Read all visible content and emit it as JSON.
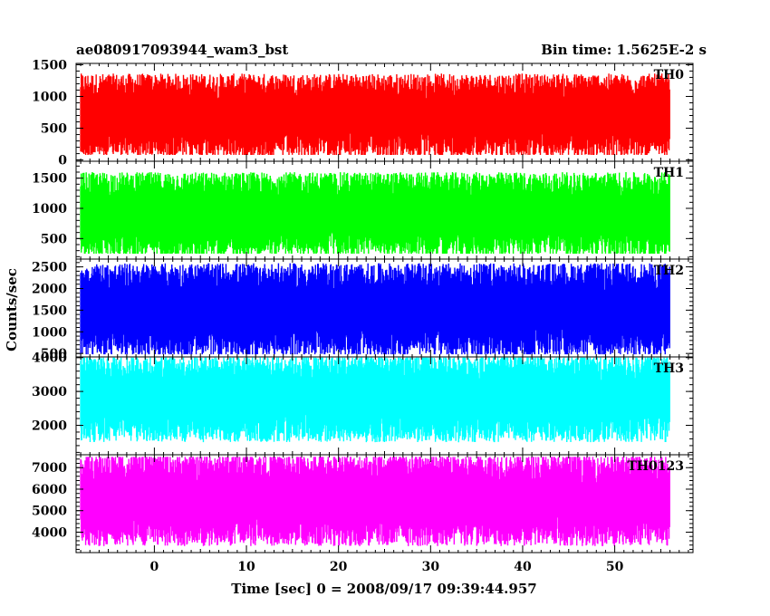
{
  "title_left": "ae080917093944_wam3_bst",
  "title_right": "Bin time: 1.5625E-2 s",
  "ylabel": "Counts/sec",
  "xlabel": "Time [sec] 0 = 2008/09/17 09:39:44.957",
  "chart_data": {
    "type": "line",
    "x_range": [
      -8.5,
      58.5
    ],
    "x_data_range": [
      -8.0,
      56.0
    ],
    "x_ticks": [
      0,
      10,
      20,
      30,
      40,
      50
    ],
    "bin_time": 0.015625,
    "panels": [
      {
        "name": "TH0",
        "color": "#ff0000",
        "ylim": [
          -20,
          1520
        ],
        "yticks": [
          0,
          500,
          1000,
          1500
        ],
        "mean": 700,
        "low": 80,
        "high": 1400
      },
      {
        "name": "TH1",
        "color": "#00ff00",
        "ylim": [
          160,
          1780
        ],
        "yticks": [
          500,
          1000,
          1500
        ],
        "mean": 900,
        "low": 250,
        "high": 1650
      },
      {
        "name": "TH2",
        "color": "#0000ff",
        "ylim": [
          420,
          2680
        ],
        "yticks": [
          500,
          1000,
          1500,
          2000,
          2500
        ],
        "mean": 1500,
        "low": 480,
        "high": 2650
      },
      {
        "name": "TH3",
        "color": "#00ffff",
        "ylim": [
          1130,
          4020
        ],
        "yticks": [
          2000,
          3000,
          4000
        ],
        "mean": 2800,
        "low": 1400,
        "high": 4000
      },
      {
        "name": "TH0123",
        "color": "#ff00ff",
        "ylim": [
          3050,
          7600
        ],
        "yticks": [
          4000,
          5000,
          6000,
          7000
        ],
        "mean": 5500,
        "low": 3200,
        "high": 7500
      }
    ]
  }
}
